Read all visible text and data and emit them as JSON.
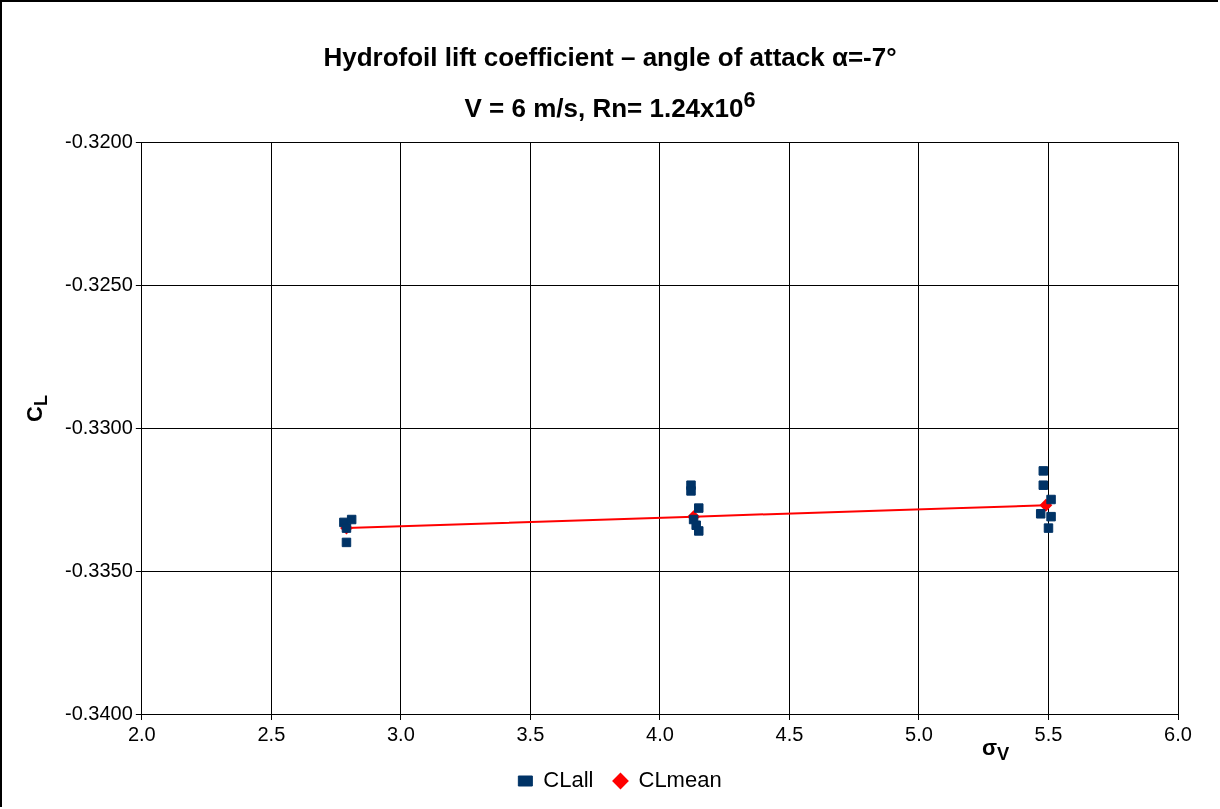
{
  "chart_data": {
    "type": "scatter",
    "title": "Hydrofoil lift coefficient – angle of attack α=-7°",
    "subtitle": "V = 6 m/s, Rn= 1.24x10$^{6}$",
    "xlabel": "σ$_{V}$",
    "ylabel": "C$_{L}$",
    "xlim": [
      2,
      6
    ],
    "xticks": [
      {
        "value": 2,
        "label": "2.0"
      },
      {
        "value": 2.5,
        "label": "2.5"
      },
      {
        "value": 3,
        "label": "3.0"
      },
      {
        "value": 3.5,
        "label": "3.5"
      },
      {
        "value": 4,
        "label": "4.0"
      },
      {
        "value": 4.5,
        "label": "4.5"
      },
      {
        "value": 5,
        "label": "5.0"
      },
      {
        "value": 5.5,
        "label": "5.5"
      },
      {
        "value": 6,
        "label": "6.0"
      }
    ],
    "ylim": [
      -0.34,
      -0.32
    ],
    "yticks": [
      {
        "value": -0.34,
        "label": "-0.3400"
      },
      {
        "value": -0.335,
        "label": "-0.3350"
      },
      {
        "value": -0.33,
        "label": "-0.3300"
      },
      {
        "value": -0.325,
        "label": "-0.3250"
      },
      {
        "value": -0.32,
        "label": "-0.3200"
      }
    ],
    "grid": true,
    "legend": "bottom",
    "series": [
      {
        "name": "CLmean",
        "type": "line",
        "color": "#ff0000",
        "marker": "diamond",
        "line_style": "solid",
        "x": [
          2.79,
          4.13,
          5.49
        ],
        "values": [
          -0.3335,
          -0.3331,
          -0.3327
        ]
      },
      {
        "name": "CLall",
        "color": "#003366",
        "marker": "square",
        "x": [
          2.78,
          2.79,
          2.81,
          2.79,
          4.12,
          4.12,
          4.15,
          4.13,
          4.14,
          4.15,
          5.48,
          5.48,
          5.51,
          5.47,
          5.51,
          5.5
        ],
        "values": [
          -0.3333,
          -0.334,
          -0.3332,
          -0.3335,
          -0.332,
          -0.3322,
          -0.3328,
          -0.3332,
          -0.3334,
          -0.3336,
          -0.3315,
          -0.332,
          -0.3325,
          -0.333,
          -0.3331,
          -0.3335
        ]
      }
    ]
  }
}
